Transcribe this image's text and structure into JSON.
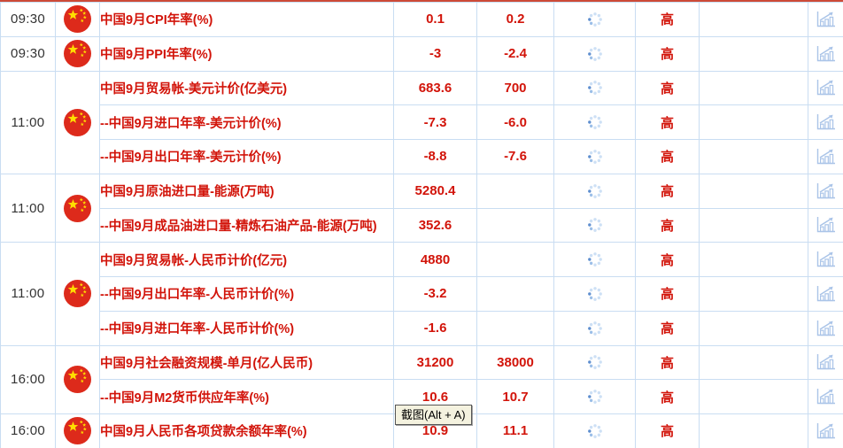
{
  "colors": {
    "accent_red_text": "#d2140a",
    "top_border_red": "#cd4a37",
    "grid_border_blue": "#c9ddf2",
    "time_text": "#333333",
    "icon_light_blue": "#aac4e8",
    "spinner_dark_dot": "#5f8fd0",
    "spinner_light_dot": "#cde0f5",
    "flag_red": "#dd2a1b",
    "flag_yellow": "#ffde00",
    "tooltip_bg": "#f4f2df"
  },
  "tooltip": {
    "text": "截图(Alt + A)"
  },
  "table": {
    "groups": [
      {
        "time": "09:30",
        "events": [
          {
            "name": "中国9月CPI年率(%)",
            "previous": "0.1",
            "forecast": "0.2",
            "importance": "高"
          }
        ]
      },
      {
        "time": "09:30",
        "events": [
          {
            "name": "中国9月PPI年率(%)",
            "previous": "-3",
            "forecast": "-2.4",
            "importance": "高"
          }
        ]
      },
      {
        "time": "11:00",
        "events": [
          {
            "name": "中国9月贸易帐-美元计价(亿美元)",
            "previous": "683.6",
            "forecast": "700",
            "importance": "高"
          },
          {
            "name": "--中国9月进口年率-美元计价(%)",
            "previous": "-7.3",
            "forecast": "-6.0",
            "importance": "高"
          },
          {
            "name": "--中国9月出口年率-美元计价(%)",
            "previous": "-8.8",
            "forecast": "-7.6",
            "importance": "高"
          }
        ]
      },
      {
        "time": "11:00",
        "events": [
          {
            "name": "中国9月原油进口量-能源(万吨)",
            "previous": "5280.4",
            "forecast": "",
            "importance": "高"
          },
          {
            "name": "--中国9月成品油进口量-精炼石油产品-能源(万吨)",
            "previous": "352.6",
            "forecast": "",
            "importance": "高"
          }
        ]
      },
      {
        "time": "11:00",
        "events": [
          {
            "name": "中国9月贸易帐-人民币计价(亿元)",
            "previous": "4880",
            "forecast": "",
            "importance": "高"
          },
          {
            "name": "--中国9月出口年率-人民币计价(%)",
            "previous": "-3.2",
            "forecast": "",
            "importance": "高"
          },
          {
            "name": "--中国9月进口年率-人民币计价(%)",
            "previous": "-1.6",
            "forecast": "",
            "importance": "高"
          }
        ]
      },
      {
        "time": "16:00",
        "events": [
          {
            "name": "中国9月社会融资规模-单月(亿人民币)",
            "previous": "31200",
            "forecast": "38000",
            "importance": "高"
          },
          {
            "name": "--中国9月M2货币供应年率(%)",
            "previous": "10.6",
            "forecast": "10.7",
            "importance": "高"
          }
        ]
      },
      {
        "time": "16:00",
        "events": [
          {
            "name": "中国9月人民币各项贷款余额年率(%)",
            "previous": "10.9",
            "forecast": "11.1",
            "importance": "高"
          }
        ]
      }
    ]
  }
}
